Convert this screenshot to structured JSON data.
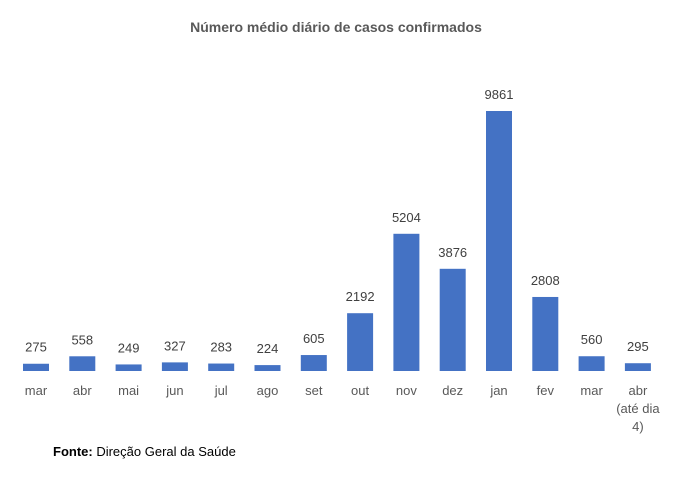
{
  "chart_data": {
    "type": "bar",
    "title": "Número médio diário de casos confirmados",
    "categories": [
      "mar",
      "abr",
      "mai",
      "jun",
      "jul",
      "ago",
      "set",
      "out",
      "nov",
      "dez",
      "jan",
      "fev",
      "mar",
      "abr (até dia 4)"
    ],
    "values": [
      275,
      558,
      249,
      327,
      283,
      224,
      605,
      2192,
      5204,
      3876,
      9861,
      2808,
      560,
      295
    ],
    "xlabel": "",
    "ylabel": "",
    "ylim": [
      0,
      9861
    ],
    "grid": false,
    "legend": "none",
    "bar_color": "#4472C4"
  },
  "footer": {
    "label": "Fonte:",
    "text": " Direção Geral da Saúde"
  }
}
